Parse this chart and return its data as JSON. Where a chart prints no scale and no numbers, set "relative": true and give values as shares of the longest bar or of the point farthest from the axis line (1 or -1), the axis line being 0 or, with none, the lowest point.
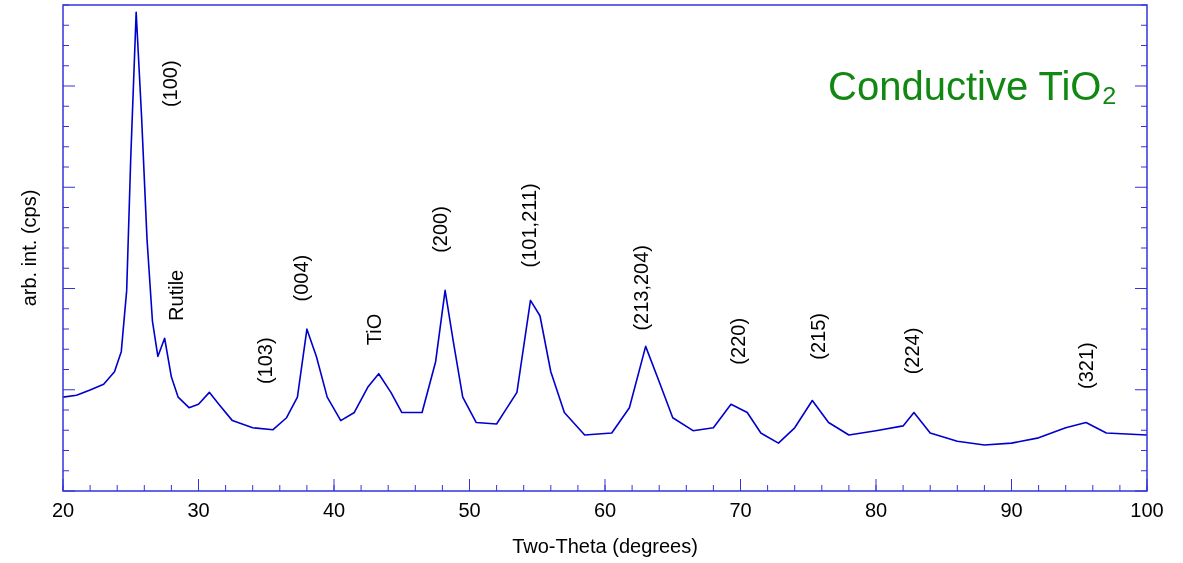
{
  "chart_data": {
    "type": "line",
    "title": "Conductive TiO₂",
    "xlabel": "Two-Theta (degrees)",
    "ylabel": "arb. int. (cps)",
    "relative": true,
    "color": "#0000cc",
    "grid": false,
    "legend": false,
    "marker": "none",
    "line_style": "solid",
    "xlim": [
      20,
      100
    ],
    "xticks": [
      20,
      30,
      40,
      50,
      60,
      70,
      80,
      90,
      100
    ],
    "x": [
      20,
      21,
      22,
      23,
      23.8,
      24.3,
      24.7,
      25,
      25.4,
      25.8,
      26.2,
      26.6,
      27,
      27.5,
      28,
      28.5,
      29.3,
      30,
      30.8,
      31.5,
      32.5,
      34,
      35.5,
      36.5,
      37.3,
      38,
      38.7,
      39.5,
      40.5,
      41.5,
      42.5,
      43.3,
      44.2,
      45,
      46.5,
      47.5,
      48.2,
      48.8,
      49.5,
      50.5,
      52,
      53.5,
      54.5,
      55.2,
      56,
      57,
      58.5,
      60.5,
      61.8,
      63,
      64,
      65,
      66.5,
      68,
      69.3,
      70.5,
      71.5,
      72.8,
      74,
      75.3,
      76.5,
      78,
      80,
      82,
      82.8,
      84,
      86,
      88,
      90,
      92,
      94,
      95.5,
      97,
      100
    ],
    "values": [
      0.196,
      0.2,
      0.211,
      0.223,
      0.249,
      0.291,
      0.419,
      0.696,
      1,
      0.781,
      0.526,
      0.355,
      0.281,
      0.319,
      0.238,
      0.196,
      0.174,
      0.181,
      0.206,
      0.181,
      0.147,
      0.132,
      0.128,
      0.153,
      0.196,
      0.338,
      0.281,
      0.196,
      0.147,
      0.164,
      0.217,
      0.245,
      0.206,
      0.164,
      0.164,
      0.27,
      0.419,
      0.313,
      0.196,
      0.143,
      0.14,
      0.206,
      0.398,
      0.366,
      0.249,
      0.164,
      0.117,
      0.121,
      0.174,
      0.302,
      0.228,
      0.153,
      0.126,
      0.132,
      0.181,
      0.164,
      0.121,
      0.1,
      0.132,
      0.189,
      0.143,
      0.117,
      0.126,
      0.136,
      0.164,
      0.121,
      0.104,
      0.096,
      0.1,
      0.111,
      0.132,
      0.143,
      0.121,
      0.117
    ],
    "annotations": [
      "(100)",
      "Rutile",
      "(103)",
      "(004)",
      "TiO",
      "(200)",
      "(101,211)",
      "(213,204)",
      "(220)",
      "(215)",
      "(224)",
      "(321)"
    ]
  }
}
